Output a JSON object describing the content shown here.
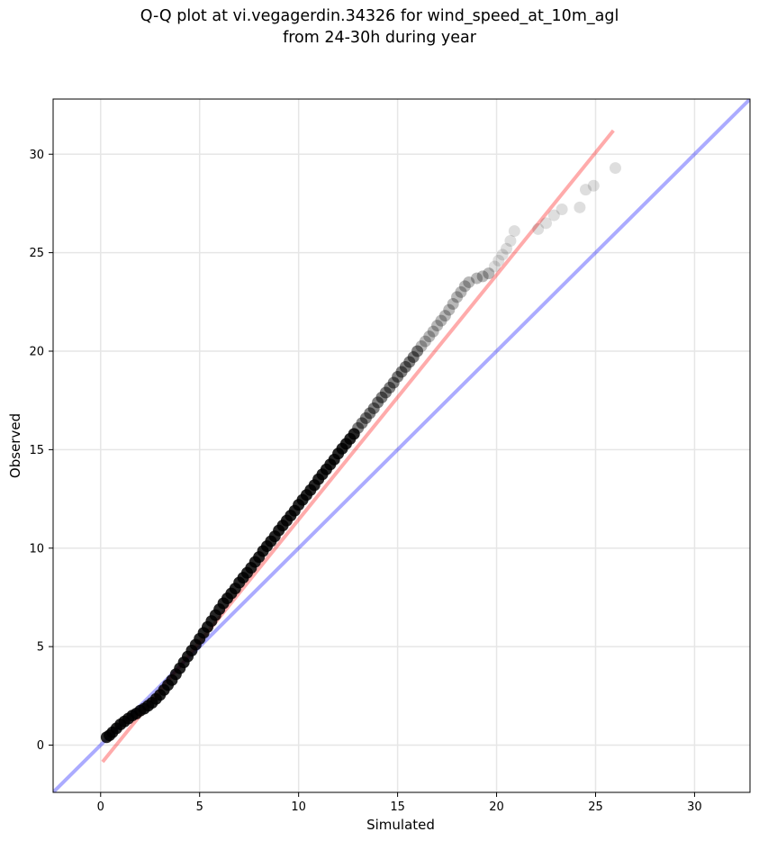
{
  "figure": {
    "title_line1": "Q-Q plot at vi.vegagerdin.34326 for wind_speed_at_10m_agl",
    "title_line2": "from 24-30h during year"
  },
  "chart_data": {
    "type": "scatter",
    "title": "Q-Q plot at vi.vegagerdin.34326 for wind_speed_at_10m_agl\nfrom 24-30h during year",
    "xlabel": "Simulated",
    "ylabel": "Observed",
    "xlim": [
      -2.4,
      32.8
    ],
    "ylim": [
      -2.4,
      32.8
    ],
    "xticks": [
      0,
      5,
      10,
      15,
      20,
      25,
      30
    ],
    "yticks": [
      0,
      5,
      10,
      15,
      20,
      25,
      30
    ],
    "grid": true,
    "series": [
      {
        "kind": "quantile-points",
        "color": "#000000",
        "x": [
          0.3,
          0.45,
          0.6,
          0.8,
          1.0,
          1.2,
          1.4,
          1.6,
          1.8,
          2.0,
          2.2,
          2.4,
          2.6,
          2.8,
          3.0,
          3.2,
          3.4,
          3.6,
          3.8,
          4.0,
          4.2,
          4.4,
          4.6,
          4.8,
          5.0,
          5.2,
          5.4,
          5.6,
          5.8,
          6.0,
          6.2,
          6.4,
          6.6,
          6.8,
          7.0,
          7.2,
          7.4,
          7.6,
          7.8,
          8.0,
          8.2,
          8.4,
          8.6,
          8.8,
          9.0,
          9.2,
          9.4,
          9.6,
          9.8,
          10.0,
          10.2,
          10.4,
          10.6,
          10.8,
          11.0,
          11.2,
          11.4,
          11.6,
          11.8,
          12.0,
          12.2,
          12.4,
          12.6,
          12.8,
          13.0,
          13.2,
          13.4,
          13.6,
          13.8,
          14.0,
          14.2,
          14.4,
          14.6,
          14.8,
          15.0,
          15.2,
          15.4,
          15.6,
          15.8,
          16.0,
          16.2,
          16.4,
          16.6,
          16.8,
          17.0,
          17.2,
          17.4,
          17.6,
          17.8,
          18.0,
          18.2,
          18.4,
          18.6,
          19.0,
          19.3,
          19.6,
          19.9,
          20.1,
          20.3,
          20.5,
          20.7,
          20.9,
          22.1,
          22.5,
          22.9,
          23.3,
          24.2,
          24.5,
          24.9,
          26.0
        ],
        "y": [
          0.4,
          0.5,
          0.65,
          0.85,
          1.05,
          1.2,
          1.35,
          1.5,
          1.6,
          1.75,
          1.85,
          2.0,
          2.15,
          2.35,
          2.55,
          2.8,
          3.05,
          3.3,
          3.6,
          3.9,
          4.2,
          4.5,
          4.8,
          5.1,
          5.4,
          5.7,
          6.0,
          6.3,
          6.6,
          6.9,
          7.2,
          7.45,
          7.7,
          7.95,
          8.25,
          8.5,
          8.75,
          9.0,
          9.3,
          9.55,
          9.85,
          10.1,
          10.35,
          10.6,
          10.9,
          11.15,
          11.4,
          11.65,
          11.9,
          12.2,
          12.45,
          12.7,
          12.95,
          13.2,
          13.5,
          13.75,
          14.0,
          14.25,
          14.5,
          14.8,
          15.05,
          15.3,
          15.55,
          15.8,
          16.1,
          16.35,
          16.6,
          16.85,
          17.1,
          17.4,
          17.65,
          17.9,
          18.15,
          18.4,
          18.7,
          18.95,
          19.2,
          19.45,
          19.7,
          20.0,
          20.25,
          20.5,
          20.75,
          21.0,
          21.3,
          21.55,
          21.8,
          22.1,
          22.4,
          22.75,
          23.0,
          23.3,
          23.5,
          23.7,
          23.8,
          23.95,
          24.3,
          24.6,
          24.9,
          25.2,
          25.6,
          26.1,
          26.2,
          26.5,
          26.9,
          27.2,
          27.3,
          28.2,
          28.4,
          29.3
        ]
      }
    ],
    "reference_lines": [
      {
        "kind": "identity",
        "color": "#0000ff",
        "x": [
          -2.4,
          32.8
        ],
        "y": [
          -2.4,
          32.8
        ]
      },
      {
        "kind": "fit",
        "color": "#ff0000",
        "x": [
          0.1,
          25.9
        ],
        "y": [
          -0.85,
          31.2
        ]
      }
    ]
  }
}
